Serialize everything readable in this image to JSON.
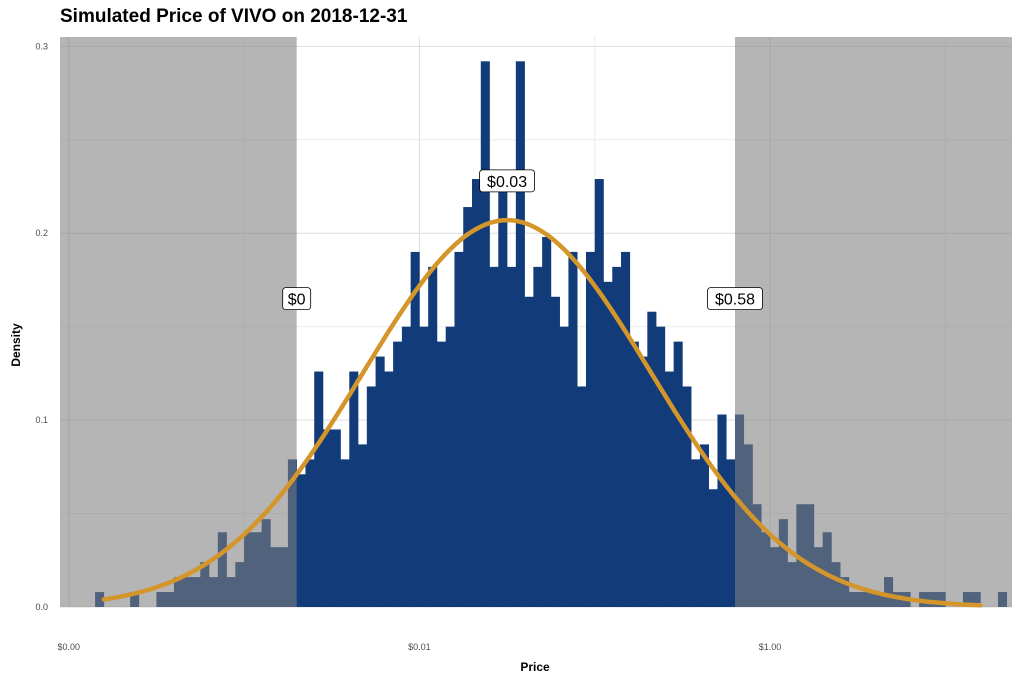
{
  "chart_data": {
    "type": "histogram",
    "title": "Simulated Price of VIVO on 2018-12-31",
    "xlabel": "Price",
    "ylabel": "Density",
    "x_scale": "log10",
    "xlim_log10": [
      -4.05,
      1.38
    ],
    "ylim": [
      0,
      0.305
    ],
    "x_ticks": [
      {
        "value_log10": -4,
        "label": "$0.00"
      },
      {
        "value_log10": -2,
        "label": "$0.01"
      },
      {
        "value_log10": 0,
        "label": "$1.00"
      }
    ],
    "y_ticks": [
      {
        "value": 0,
        "label": "0.0"
      },
      {
        "value": 0.1,
        "label": "0.1"
      },
      {
        "value": 0.2,
        "label": "0.2"
      },
      {
        "value": 0.3,
        "label": "0.3"
      }
    ],
    "bin_start_log10": -3.85,
    "bin_width_log10": 0.05,
    "bin_values": [
      0.008,
      0,
      0,
      0,
      0.008,
      0,
      0,
      0.008,
      0.008,
      0.016,
      0.016,
      0.016,
      0.024,
      0.016,
      0.04,
      0.016,
      0.024,
      0.04,
      0.04,
      0.047,
      0.032,
      0.032,
      0.079,
      0.071,
      0.079,
      0.126,
      0.095,
      0.095,
      0.079,
      0.126,
      0.087,
      0.118,
      0.134,
      0.126,
      0.142,
      0.15,
      0.19,
      0.15,
      0.182,
      0.142,
      0.15,
      0.19,
      0.214,
      0.229,
      0.292,
      0.182,
      0.229,
      0.182,
      0.292,
      0.166,
      0.182,
      0.198,
      0.166,
      0.15,
      0.19,
      0.118,
      0.19,
      0.229,
      0.174,
      0.182,
      0.19,
      0.142,
      0.134,
      0.158,
      0.15,
      0.126,
      0.142,
      0.118,
      0.079,
      0.087,
      0.063,
      0.103,
      0.079,
      0.103,
      0.087,
      0.055,
      0.04,
      0.032,
      0.047,
      0.024,
      0.055,
      0.055,
      0.032,
      0.04,
      0.024,
      0.016,
      0.008,
      0.008,
      0.008,
      0.008,
      0.016,
      0.008,
      0.008,
      0,
      0.008,
      0.008,
      0.008,
      0,
      0,
      0.008,
      0.008,
      0,
      0,
      0.008,
      0,
      0,
      0,
      0.008
    ],
    "bar_color": "#123b7a",
    "density_curve": {
      "mean_log10": -1.5,
      "sd_log10": 0.82,
      "peak": 0.207,
      "color": "#d4962a",
      "from_log10": -3.8,
      "to_log10": 1.2
    },
    "shaded_regions": [
      {
        "from_log10": -4.05,
        "to_log10": -2.7
      },
      {
        "from_log10": -0.2,
        "to_log10": 1.38
      }
    ],
    "shade_color": "#7f7f7f",
    "annotations": [
      {
        "text": "$0",
        "x_log10": -2.7,
        "y": 0.165
      },
      {
        "text": "$0.03",
        "x_log10": -1.5,
        "y": 0.228
      },
      {
        "text": "$0.58",
        "x_log10": -0.2,
        "y": 0.165
      }
    ]
  }
}
